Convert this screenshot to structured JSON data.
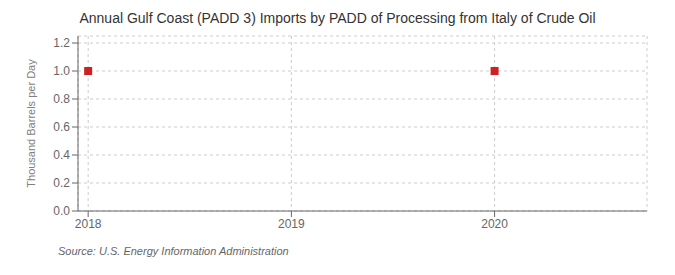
{
  "chart_data": {
    "type": "scatter",
    "title": "Annual Gulf Coast (PADD 3) Imports by PADD of Processing from Italy of Crude Oil",
    "y_label": "Thousand Barrels per Day",
    "source": "Source: U.S. Energy Information Administration",
    "x": [
      2018,
      2020
    ],
    "values": [
      1.0,
      1.0
    ],
    "color": "#cc2222",
    "marker": "square",
    "xlim": [
      2017.95,
      2020.75
    ],
    "ylim": [
      0.0,
      1.25
    ],
    "xticks": [
      2018,
      2019,
      2020
    ],
    "yticks": [
      {
        "value": 0,
        "label": "0.0"
      },
      0.2,
      0.4,
      0.6,
      0.8,
      {
        "value": 1,
        "label": "1.0"
      },
      1.2
    ],
    "grid": true
  }
}
